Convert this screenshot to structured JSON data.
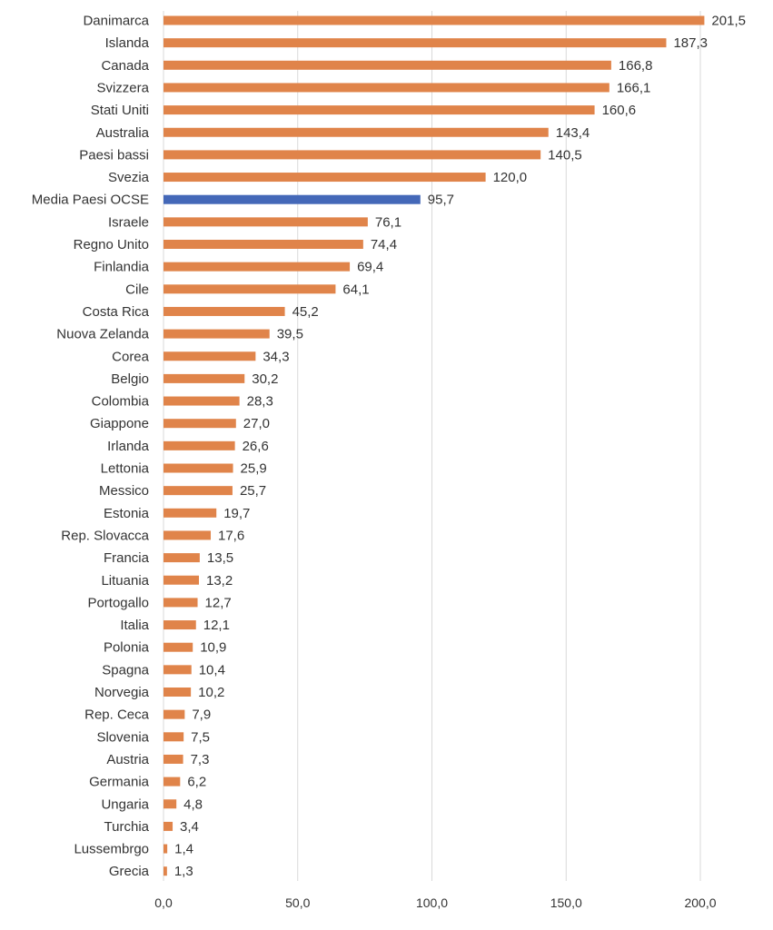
{
  "chart_data": {
    "type": "bar",
    "orientation": "horizontal",
    "title": "",
    "xlabel": "",
    "ylabel": "",
    "xlim": [
      0,
      200
    ],
    "ticks": [
      "0,0",
      "50,0",
      "100,0",
      "150,0",
      "200,0"
    ],
    "grid": "vertical",
    "legend": "none",
    "colors": {
      "default": "#E0844A",
      "highlight": "#4468B8",
      "grid": "#D9D9D9",
      "text": "#333333"
    },
    "highlight_category": "Media Paesi OCSE",
    "categories": [
      "Danimarca",
      "Islanda",
      "Canada",
      "Svizzera",
      "Stati Uniti",
      "Australia",
      "Paesi bassi",
      "Svezia",
      "Media Paesi OCSE",
      "Israele",
      "Regno Unito",
      "Finlandia",
      "Cile",
      "Costa Rica",
      "Nuova Zelanda",
      "Corea",
      "Belgio",
      "Colombia",
      "Giappone",
      "Irlanda",
      "Lettonia",
      "Messico",
      "Estonia",
      "Rep. Slovacca",
      "Francia",
      "Lituania",
      "Portogallo",
      "Italia",
      "Polonia",
      "Spagna",
      "Norvegia",
      "Rep. Ceca",
      "Slovenia",
      "Austria",
      "Germania",
      "Ungaria",
      "Turchia",
      "Lussembrgo",
      "Grecia"
    ],
    "values": [
      201.5,
      187.3,
      166.8,
      166.1,
      160.6,
      143.4,
      140.5,
      120.0,
      95.7,
      76.1,
      74.4,
      69.4,
      64.1,
      45.2,
      39.5,
      34.3,
      30.2,
      28.3,
      27.0,
      26.6,
      25.9,
      25.7,
      19.7,
      17.6,
      13.5,
      13.2,
      12.7,
      12.1,
      10.9,
      10.4,
      10.2,
      7.9,
      7.5,
      7.3,
      6.2,
      4.8,
      3.4,
      1.4,
      1.3
    ],
    "value_labels": [
      "201,5",
      "187,3",
      "166,8",
      "166,1",
      "160,6",
      "143,4",
      "140,5",
      "120,0",
      "95,7",
      "76,1",
      "74,4",
      "69,4",
      "64,1",
      "45,2",
      "39,5",
      "34,3",
      "30,2",
      "28,3",
      "27,0",
      "26,6",
      "25,9",
      "25,7",
      "19,7",
      "17,6",
      "13,5",
      "13,2",
      "12,7",
      "12,1",
      "10,9",
      "10,4",
      "10,2",
      "7,9",
      "7,5",
      "7,3",
      "6,2",
      "4,8",
      "3,4",
      "1,4",
      "1,3"
    ]
  }
}
